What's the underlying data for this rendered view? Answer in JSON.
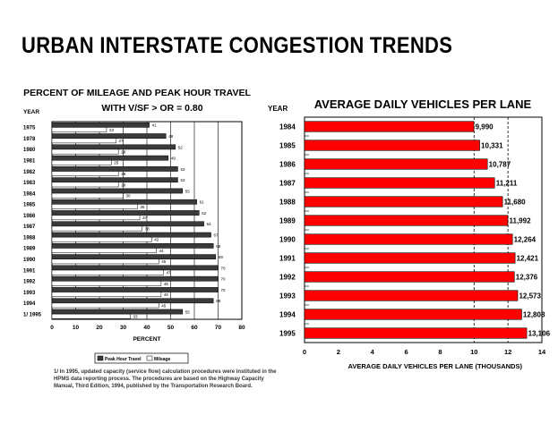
{
  "title": "URBAN INTERSTATE CONGESTION TRENDS",
  "chart_data": [
    {
      "type": "bar",
      "orientation": "horizontal",
      "title": "PERCENT OF MILEAGE AND PEAK HOUR TRAVEL",
      "subtitle": "WITH V/SF > OR = 0.80",
      "category_axis_label": "YEAR",
      "xlabel": "PERCENT",
      "xlim": [
        0,
        80
      ],
      "xticks": [
        0,
        10,
        20,
        30,
        40,
        50,
        60,
        70,
        80
      ],
      "categories": [
        "1975",
        "1978",
        "1980",
        "1981",
        "1982",
        "1983",
        "1984",
        "1985",
        "1986",
        "1987",
        "1988",
        "1989",
        "1990",
        "1991",
        "1992",
        "1993",
        "1994",
        "1/ 1995"
      ],
      "series": [
        {
          "name": "Peak Hour Travel",
          "color": "#3a3a3a",
          "values": [
            41,
            48,
            52,
            49,
            53,
            53,
            55,
            61,
            62,
            64,
            67,
            68,
            69,
            70,
            70,
            70,
            68,
            55
          ],
          "labels": [
            "41",
            "48",
            "52",
            "49",
            "53",
            "53",
            "55",
            "61",
            "62",
            "64",
            "67",
            "68",
            "69",
            "70",
            "70",
            "70",
            "68",
            "55"
          ]
        },
        {
          "name": "Mileage",
          "color": "#ffffff",
          "values": [
            23,
            27,
            28,
            25,
            28,
            28,
            30,
            36,
            37,
            38,
            42,
            44,
            45,
            47,
            46,
            46,
            45,
            33
          ],
          "labels": [
            "23",
            "27",
            "28",
            "25",
            "28",
            "28",
            "30",
            "36",
            "37",
            "38",
            "42",
            "44",
            "45",
            "47",
            "46",
            "46",
            "45",
            "33"
          ]
        }
      ],
      "legend_position": "bottom",
      "grid": true
    },
    {
      "type": "bar",
      "orientation": "horizontal",
      "title": "AVERAGE DAILY VEHICLES PER LANE",
      "category_axis_label": "YEAR",
      "xlabel": "AVERAGE DAILY VEHICLES PER LANE (THOUSANDS)",
      "xlim": [
        0,
        14
      ],
      "xticks": [
        0,
        2,
        4,
        6,
        8,
        10,
        12,
        14
      ],
      "categories": [
        "1984",
        "1985",
        "1986",
        "1987",
        "1988",
        "1989",
        "1990",
        "1991",
        "1992",
        "1993",
        "1994",
        "1995"
      ],
      "series": [
        {
          "color": "#ff0000",
          "values": [
            9.99,
            10.331,
            10.787,
            11.211,
            11.68,
            11.992,
            12.264,
            12.421,
            12.376,
            12.573,
            12.808,
            13.106
          ],
          "labels": [
            "9,990",
            "10,331",
            "10,787",
            "11,211",
            "11,680",
            "11,992",
            "12,264",
            "12,421",
            "12,376",
            "12,573",
            "12,808",
            "13,106"
          ]
        }
      ],
      "grid": true
    }
  ],
  "footnote": "1/ In 1995, updated capacity (service flow) calculation procedures were instituted in the HPMS data reporting process. The procedures are based on the Highway Capacity Manual, Third Edition, 1994, published by the Transportation Research Board."
}
